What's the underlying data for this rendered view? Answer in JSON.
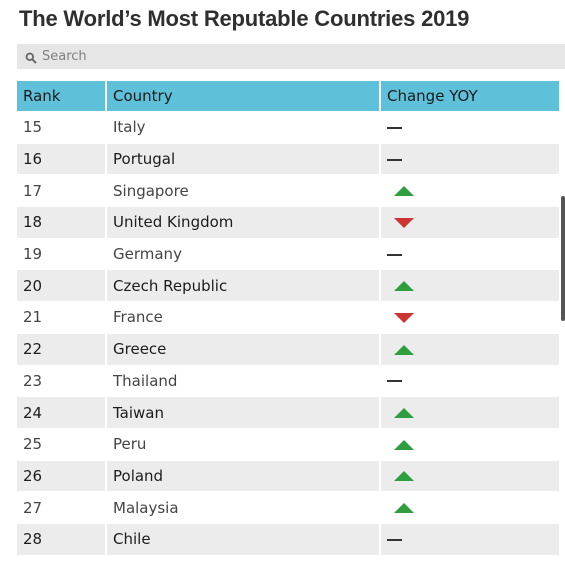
{
  "title": "The World’s Most Reputable Countries 2019",
  "search": {
    "placeholder": "Search"
  },
  "table": {
    "headers": [
      "Rank",
      "Country",
      "Change YOY"
    ],
    "rows": [
      {
        "rank": "15",
        "country": "Italy",
        "change": "flat"
      },
      {
        "rank": "16",
        "country": "Portugal",
        "change": "flat"
      },
      {
        "rank": "17",
        "country": "Singapore",
        "change": "up"
      },
      {
        "rank": "18",
        "country": "United Kingdom",
        "change": "down"
      },
      {
        "rank": "19",
        "country": "Germany",
        "change": "flat"
      },
      {
        "rank": "20",
        "country": "Czech Republic",
        "change": "up"
      },
      {
        "rank": "21",
        "country": "France",
        "change": "down"
      },
      {
        "rank": "22",
        "country": "Greece",
        "change": "up"
      },
      {
        "rank": "23",
        "country": "Thailand",
        "change": "flat"
      },
      {
        "rank": "24",
        "country": "Taiwan",
        "change": "up"
      },
      {
        "rank": "25",
        "country": "Peru",
        "change": "up"
      },
      {
        "rank": "26",
        "country": "Poland",
        "change": "up"
      },
      {
        "rank": "27",
        "country": "Malaysia",
        "change": "up"
      },
      {
        "rank": "28",
        "country": "Chile",
        "change": "flat"
      }
    ]
  },
  "colors": {
    "header": "#5fc1d9",
    "up": "#2e9e3e",
    "down": "#cc3333",
    "row_alt": "#ececec"
  },
  "icons": {
    "up": "triangle-up-icon",
    "down": "triangle-down-icon",
    "flat": "dash-icon",
    "search": "search-icon"
  }
}
